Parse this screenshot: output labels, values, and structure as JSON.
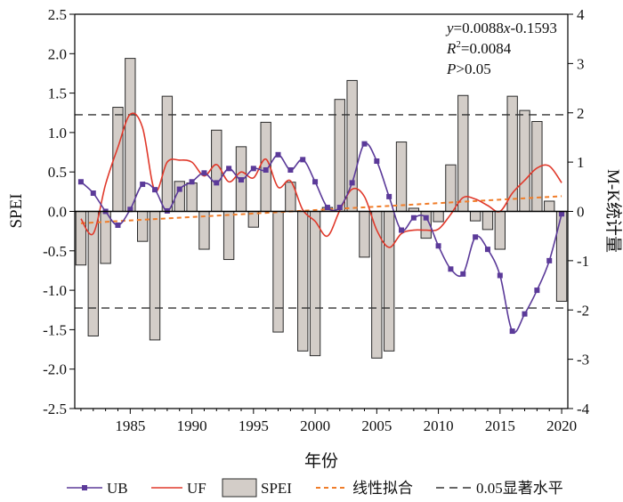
{
  "chart_data": {
    "type": "bar",
    "xlabel": "年份",
    "ylabel": "SPEI",
    "y2label": "M-K统计量",
    "xlim": [
      1980.5,
      2020.5
    ],
    "ylim": [
      -2.5,
      2.5
    ],
    "y2lim": [
      -4,
      4
    ],
    "xticks": [
      "1985",
      "1990",
      "1995",
      "2000",
      "2005",
      "2010",
      "2015",
      "2020"
    ],
    "yticks": [
      "-2.5",
      "-2.0",
      "-1.5",
      "-1.0",
      "-0.5",
      "0.0",
      "0.5",
      "1.0",
      "1.5",
      "2.0",
      "2.5"
    ],
    "y2ticks": [
      "-4",
      "-3",
      "-2",
      "-1",
      "0",
      "1",
      "2",
      "3",
      "4"
    ],
    "annotations": {
      "line1_italic": "y",
      "line1_rest": "=0.0088",
      "line1_italic2": "x",
      "line1_end": "-0.1593",
      "line2_italic": "R",
      "line2_sup": "2",
      "line2_rest": "=0.0084",
      "line3_italic": "P",
      "line3_rest": ">0.05"
    },
    "years": [
      1981,
      1982,
      1983,
      1984,
      1985,
      1986,
      1987,
      1988,
      1989,
      1990,
      1991,
      1992,
      1993,
      1994,
      1995,
      1996,
      1997,
      1998,
      1999,
      2000,
      2001,
      2002,
      2003,
      2004,
      2005,
      2006,
      2007,
      2008,
      2009,
      2010,
      2011,
      2012,
      2013,
      2014,
      2015,
      2016,
      2017,
      2018,
      2019,
      2020
    ],
    "series": [
      {
        "name": "SPEI",
        "kind": "bar",
        "axis": "left",
        "color": "#d3cdc8",
        "values": [
          -0.68,
          -1.58,
          -0.66,
          1.32,
          1.94,
          -0.38,
          -1.63,
          1.46,
          0.38,
          0.36,
          -0.48,
          1.03,
          -0.61,
          0.82,
          -0.2,
          1.13,
          -1.53,
          0.37,
          -1.77,
          -1.83,
          0.05,
          1.42,
          1.66,
          -0.58,
          -1.86,
          -1.77,
          0.88,
          0.04,
          -0.34,
          -0.13,
          0.59,
          1.47,
          -0.12,
          -0.23,
          -0.48,
          1.46,
          1.28,
          1.14,
          0.13,
          -1.14
        ]
      },
      {
        "name": "UB",
        "kind": "line",
        "axis": "right",
        "color": "#5b3a99",
        "values": [
          0.6,
          0.37,
          0.0,
          -0.28,
          0.04,
          0.55,
          0.44,
          0.01,
          0.45,
          0.6,
          0.78,
          0.58,
          0.87,
          0.64,
          0.87,
          0.84,
          1.15,
          0.84,
          1.05,
          0.6,
          0.08,
          0.08,
          0.58,
          1.37,
          1.02,
          0.3,
          -0.38,
          -0.13,
          -0.13,
          -0.7,
          -1.17,
          -1.27,
          -0.52,
          -0.77,
          -1.3,
          -2.43,
          -2.08,
          -1.6,
          -1.0,
          -0.05
        ]
      },
      {
        "name": "UF",
        "kind": "line",
        "axis": "right",
        "color": "#e0392b",
        "values": [
          -0.15,
          -0.45,
          0.55,
          1.3,
          1.97,
          1.7,
          0.42,
          1.0,
          1.04,
          1.0,
          0.72,
          0.95,
          0.6,
          0.8,
          0.68,
          1.06,
          0.49,
          0.62,
          0.03,
          -0.2,
          -0.5,
          0.02,
          0.45,
          0.3,
          -0.38,
          -0.73,
          -0.45,
          -0.38,
          -0.38,
          -0.36,
          -0.06,
          0.28,
          0.25,
          0.12,
          0.0,
          0.37,
          0.63,
          0.88,
          0.92,
          0.58
        ]
      },
      {
        "name": "线性拟合",
        "kind": "trend",
        "axis": "left",
        "color": "#f07d2a",
        "slope": 0.0088,
        "intercept": -0.1593
      },
      {
        "name": "0.05显著水平",
        "kind": "hline",
        "axis": "right",
        "color": "#333333",
        "values": [
          1.96,
          -1.96
        ]
      }
    ],
    "legend_position": "bottom",
    "grid": false
  }
}
